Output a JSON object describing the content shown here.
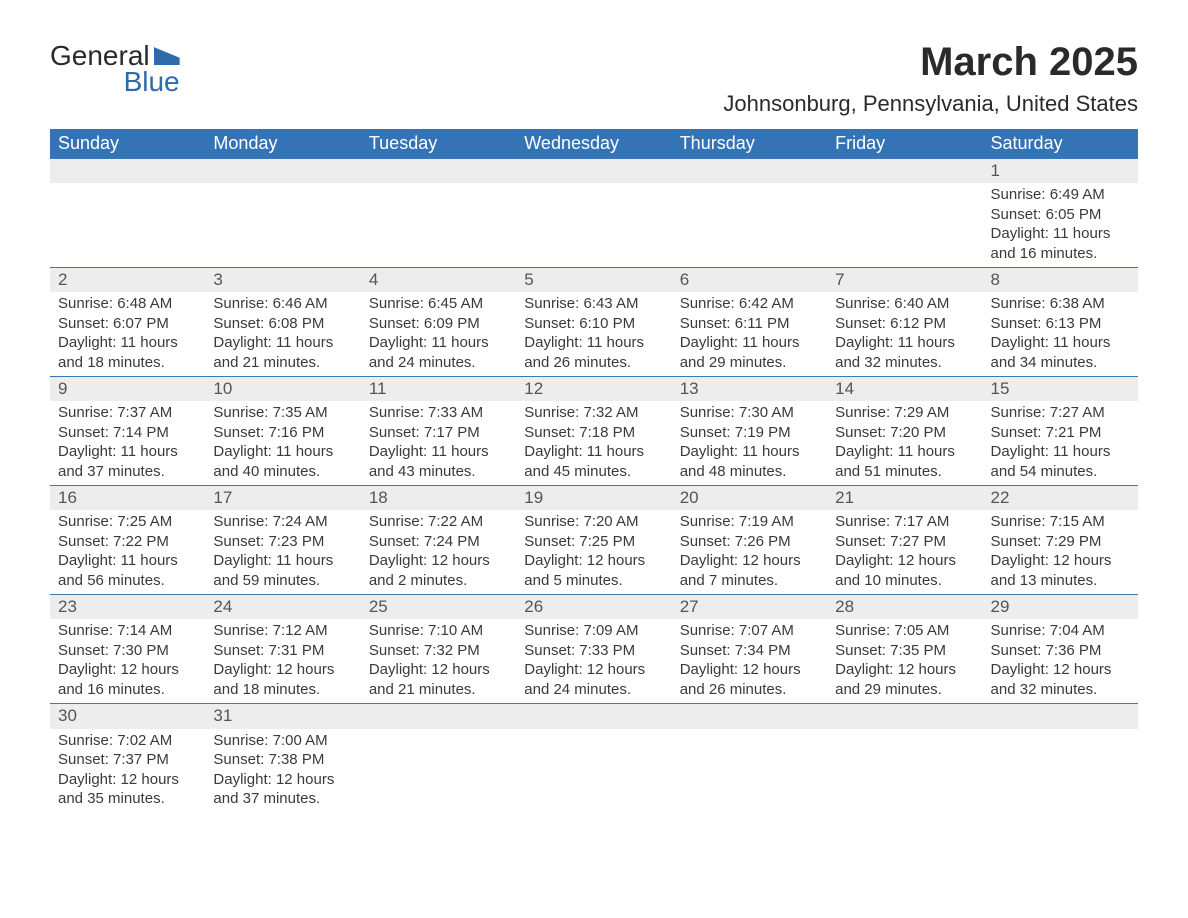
{
  "logo": {
    "text_top": "General",
    "text_bottom": "Blue",
    "flag_color": "#2e6bab"
  },
  "title": "March 2025",
  "location": "Johnsonburg, Pennsylvania, United States",
  "header_bg": "#3474b6",
  "header_fg": "#ffffff",
  "daynum_bg": "#ededed",
  "row_divider": "#3b78b7",
  "text_color": "#3a3a3a",
  "columns": [
    "Sunday",
    "Monday",
    "Tuesday",
    "Wednesday",
    "Thursday",
    "Friday",
    "Saturday"
  ],
  "weeks": [
    [
      null,
      null,
      null,
      null,
      null,
      null,
      {
        "d": "1",
        "sr": "6:49 AM",
        "ss": "6:05 PM",
        "dl": "11 hours and 16 minutes."
      }
    ],
    [
      {
        "d": "2",
        "sr": "6:48 AM",
        "ss": "6:07 PM",
        "dl": "11 hours and 18 minutes."
      },
      {
        "d": "3",
        "sr": "6:46 AM",
        "ss": "6:08 PM",
        "dl": "11 hours and 21 minutes."
      },
      {
        "d": "4",
        "sr": "6:45 AM",
        "ss": "6:09 PM",
        "dl": "11 hours and 24 minutes."
      },
      {
        "d": "5",
        "sr": "6:43 AM",
        "ss": "6:10 PM",
        "dl": "11 hours and 26 minutes."
      },
      {
        "d": "6",
        "sr": "6:42 AM",
        "ss": "6:11 PM",
        "dl": "11 hours and 29 minutes."
      },
      {
        "d": "7",
        "sr": "6:40 AM",
        "ss": "6:12 PM",
        "dl": "11 hours and 32 minutes."
      },
      {
        "d": "8",
        "sr": "6:38 AM",
        "ss": "6:13 PM",
        "dl": "11 hours and 34 minutes."
      }
    ],
    [
      {
        "d": "9",
        "sr": "7:37 AM",
        "ss": "7:14 PM",
        "dl": "11 hours and 37 minutes."
      },
      {
        "d": "10",
        "sr": "7:35 AM",
        "ss": "7:16 PM",
        "dl": "11 hours and 40 minutes."
      },
      {
        "d": "11",
        "sr": "7:33 AM",
        "ss": "7:17 PM",
        "dl": "11 hours and 43 minutes."
      },
      {
        "d": "12",
        "sr": "7:32 AM",
        "ss": "7:18 PM",
        "dl": "11 hours and 45 minutes."
      },
      {
        "d": "13",
        "sr": "7:30 AM",
        "ss": "7:19 PM",
        "dl": "11 hours and 48 minutes."
      },
      {
        "d": "14",
        "sr": "7:29 AM",
        "ss": "7:20 PM",
        "dl": "11 hours and 51 minutes."
      },
      {
        "d": "15",
        "sr": "7:27 AM",
        "ss": "7:21 PM",
        "dl": "11 hours and 54 minutes."
      }
    ],
    [
      {
        "d": "16",
        "sr": "7:25 AM",
        "ss": "7:22 PM",
        "dl": "11 hours and 56 minutes."
      },
      {
        "d": "17",
        "sr": "7:24 AM",
        "ss": "7:23 PM",
        "dl": "11 hours and 59 minutes."
      },
      {
        "d": "18",
        "sr": "7:22 AM",
        "ss": "7:24 PM",
        "dl": "12 hours and 2 minutes."
      },
      {
        "d": "19",
        "sr": "7:20 AM",
        "ss": "7:25 PM",
        "dl": "12 hours and 5 minutes."
      },
      {
        "d": "20",
        "sr": "7:19 AM",
        "ss": "7:26 PM",
        "dl": "12 hours and 7 minutes."
      },
      {
        "d": "21",
        "sr": "7:17 AM",
        "ss": "7:27 PM",
        "dl": "12 hours and 10 minutes."
      },
      {
        "d": "22",
        "sr": "7:15 AM",
        "ss": "7:29 PM",
        "dl": "12 hours and 13 minutes."
      }
    ],
    [
      {
        "d": "23",
        "sr": "7:14 AM",
        "ss": "7:30 PM",
        "dl": "12 hours and 16 minutes."
      },
      {
        "d": "24",
        "sr": "7:12 AM",
        "ss": "7:31 PM",
        "dl": "12 hours and 18 minutes."
      },
      {
        "d": "25",
        "sr": "7:10 AM",
        "ss": "7:32 PM",
        "dl": "12 hours and 21 minutes."
      },
      {
        "d": "26",
        "sr": "7:09 AM",
        "ss": "7:33 PM",
        "dl": "12 hours and 24 minutes."
      },
      {
        "d": "27",
        "sr": "7:07 AM",
        "ss": "7:34 PM",
        "dl": "12 hours and 26 minutes."
      },
      {
        "d": "28",
        "sr": "7:05 AM",
        "ss": "7:35 PM",
        "dl": "12 hours and 29 minutes."
      },
      {
        "d": "29",
        "sr": "7:04 AM",
        "ss": "7:36 PM",
        "dl": "12 hours and 32 minutes."
      }
    ],
    [
      {
        "d": "30",
        "sr": "7:02 AM",
        "ss": "7:37 PM",
        "dl": "12 hours and 35 minutes."
      },
      {
        "d": "31",
        "sr": "7:00 AM",
        "ss": "7:38 PM",
        "dl": "12 hours and 37 minutes."
      },
      null,
      null,
      null,
      null,
      null
    ]
  ],
  "labels": {
    "sunrise": "Sunrise: ",
    "sunset": "Sunset: ",
    "daylight": "Daylight: "
  }
}
